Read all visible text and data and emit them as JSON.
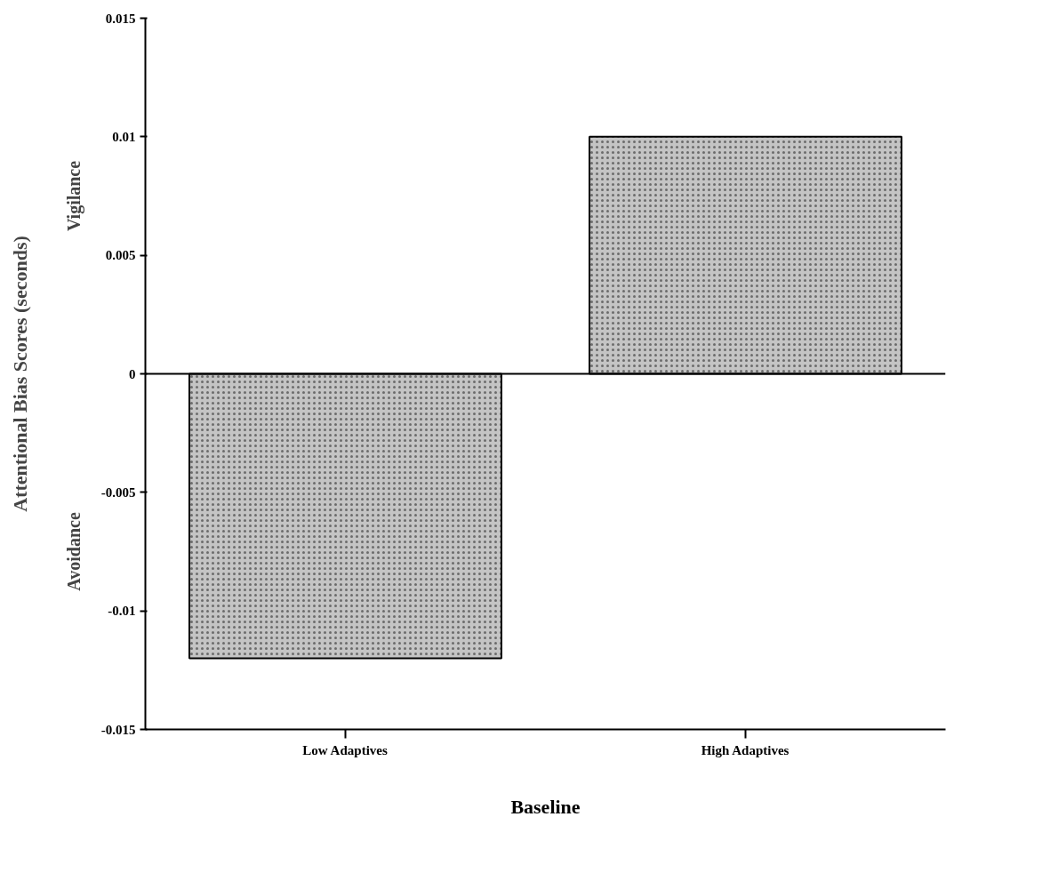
{
  "chart_data": {
    "type": "bar",
    "categories": [
      "Low Adaptives",
      "High Adaptives"
    ],
    "values": [
      -0.012,
      0.01
    ],
    "color": "#c4c4c4",
    "xlabel": "Baseline",
    "ylabel": "Attentional Bias Scores (seconds)",
    "annotations": [
      "Vigilance",
      "Avoidance"
    ],
    "ylim": [
      -0.015,
      0.015
    ],
    "yticks": [
      -0.015,
      -0.01,
      -0.005,
      0,
      0.005,
      0.01,
      0.015
    ],
    "ref_lines": [
      {
        "axis": "y",
        "value": 0,
        "color": "#000000"
      }
    ],
    "grid": false
  }
}
